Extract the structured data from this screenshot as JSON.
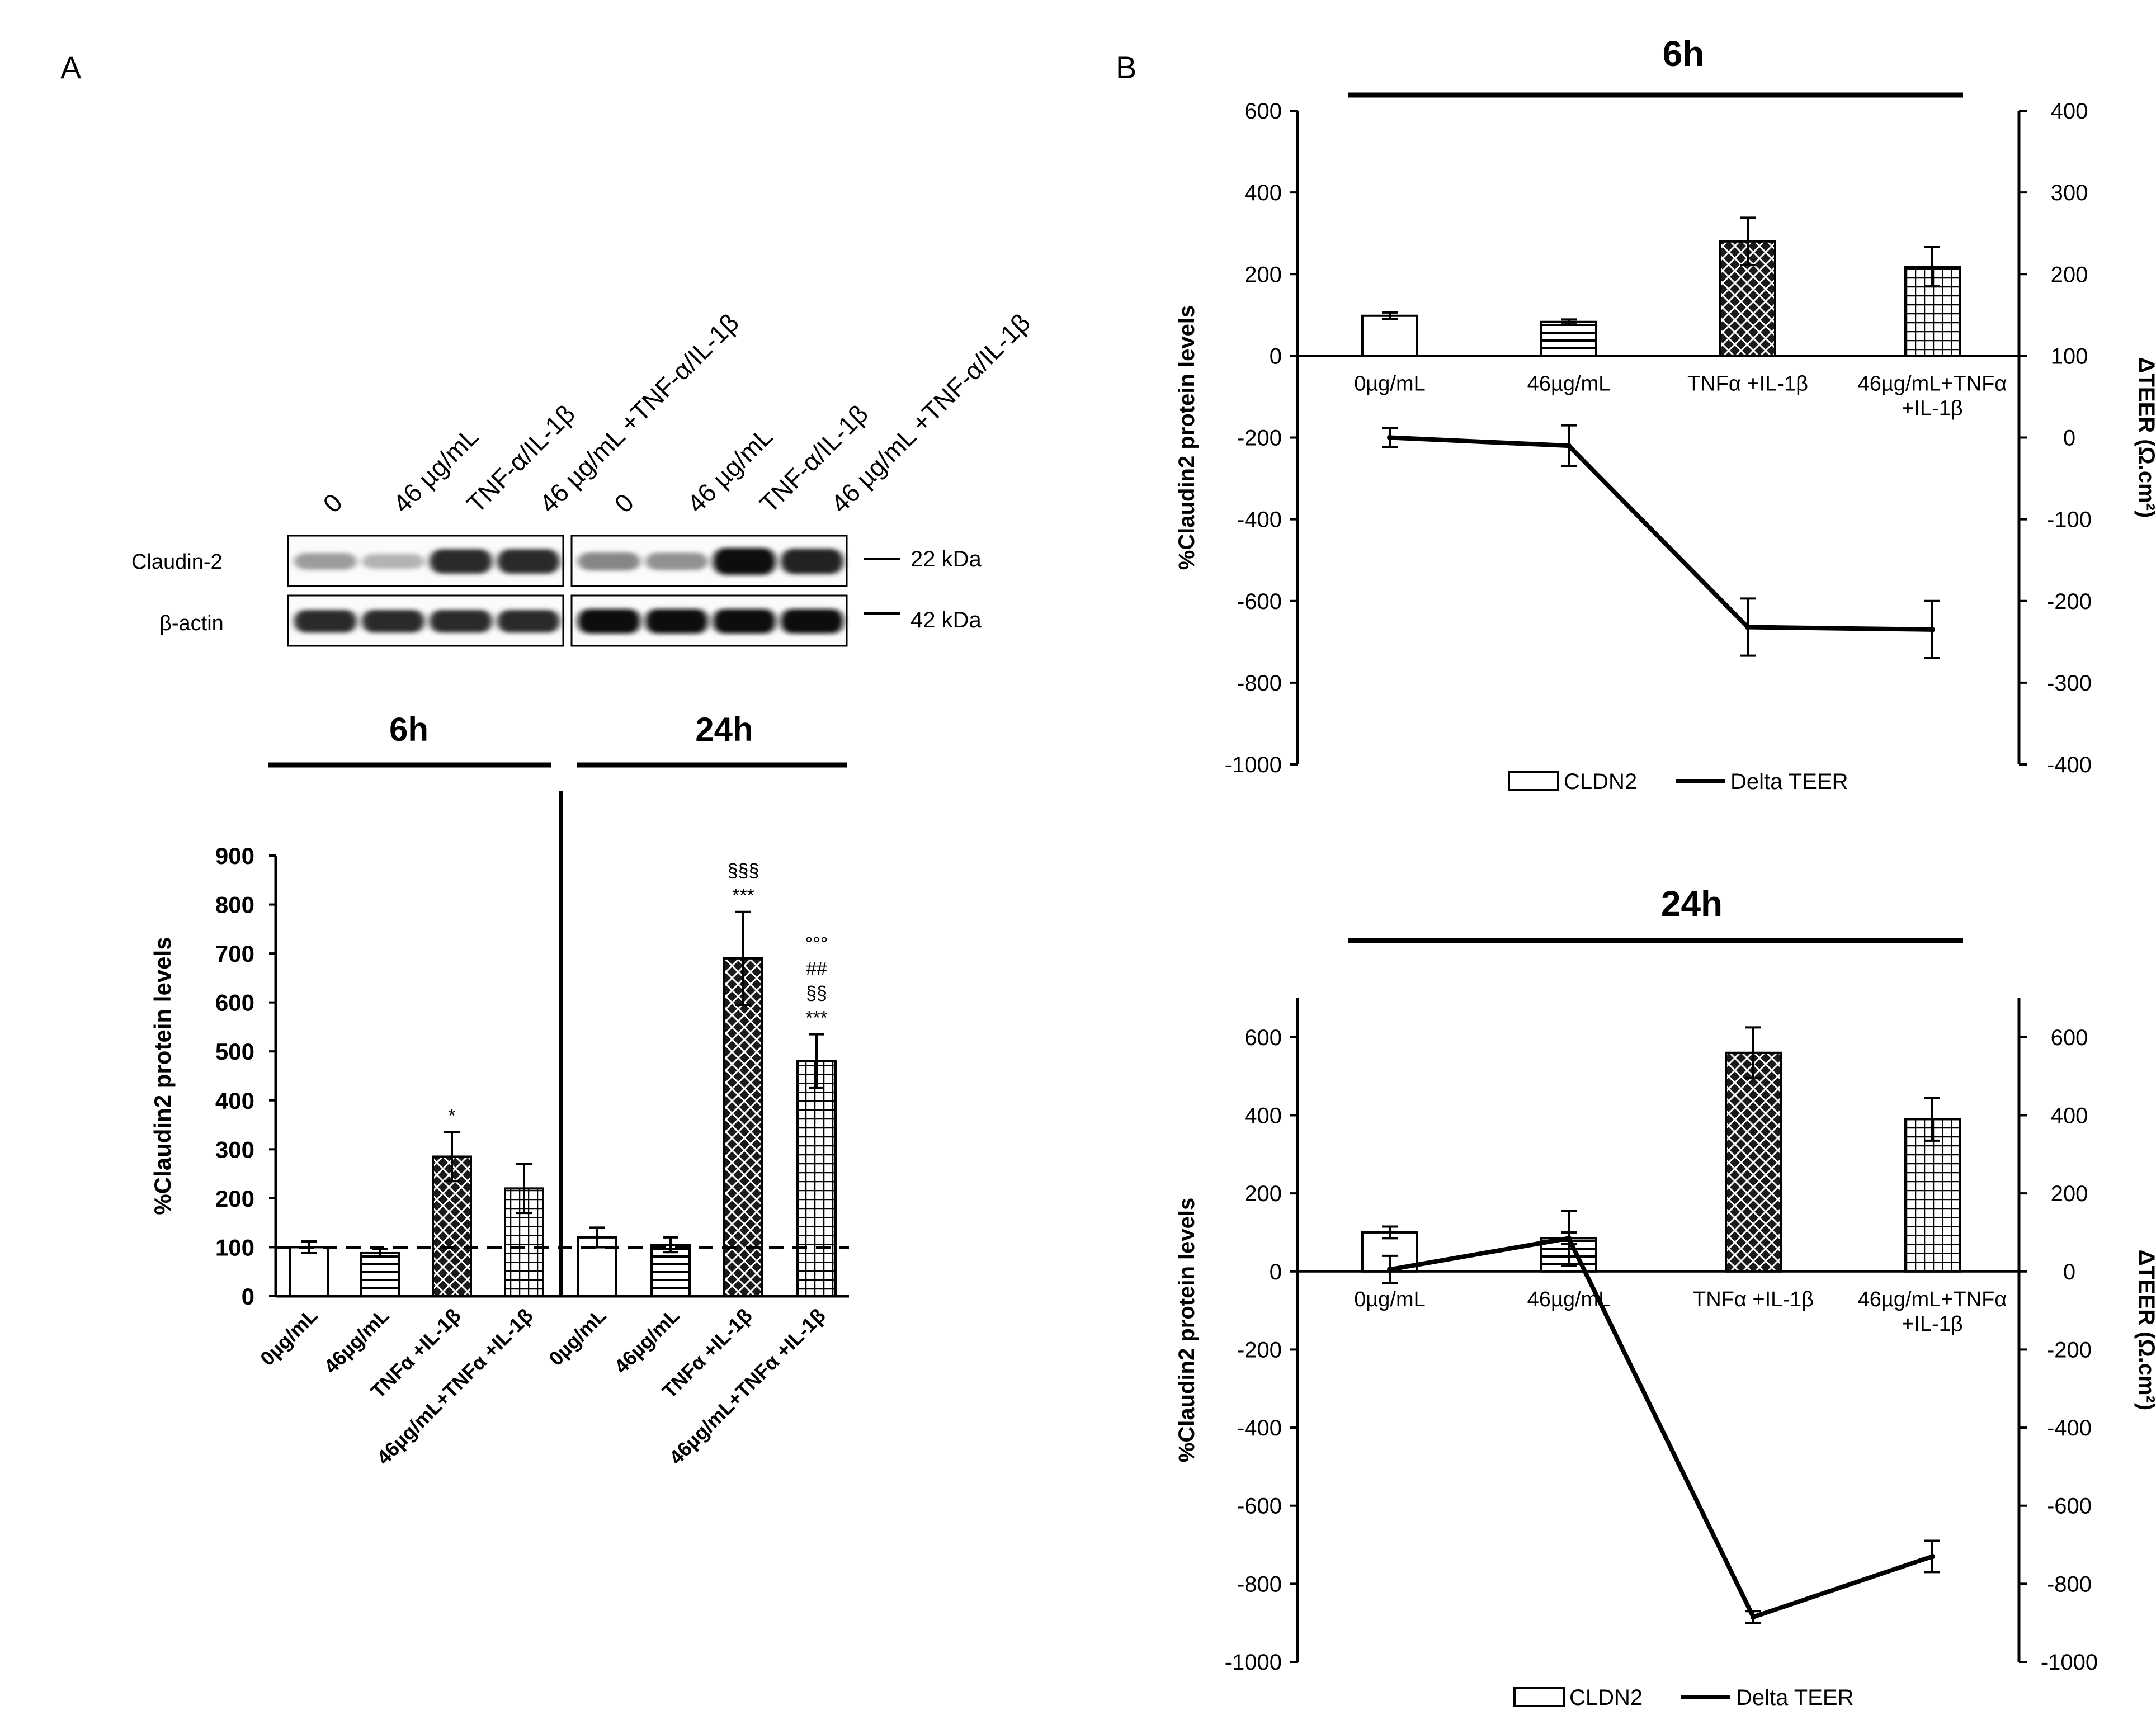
{
  "panel_a": {
    "letter": "A",
    "blot": {
      "lanes": [
        "0",
        "46 µg/mL",
        "TNF-α/IL-1β",
        "46 µg/mL +TNF-α/IL-1β",
        "0",
        "46 µg/mL",
        "TNF-α/IL-1β",
        "46 µg/mL +TNF-α/IL-1β"
      ],
      "rows": [
        "Claudin-2",
        "β-actin"
      ],
      "markers": [
        "22 kDa",
        "42 kDa"
      ],
      "intensity": {
        "claudin": [
          0.35,
          0.25,
          0.85,
          0.85,
          0.45,
          0.4,
          1.0,
          0.9
        ],
        "actin": [
          0.85,
          0.85,
          0.85,
          0.85,
          1.0,
          1.0,
          1.0,
          1.0
        ]
      }
    }
  },
  "panel_b": {
    "letter": "B"
  },
  "chart_data": [
    {
      "id": "A-bar",
      "type": "bar",
      "groups": [
        "6h",
        "24h"
      ],
      "categories": [
        "0µg/mL",
        "46µg/mL",
        "TNFα +IL-1β",
        "46µg/mL+TNFα +IL-1β",
        "0µg/mL",
        "46µg/mL",
        "TNFα +IL-1β",
        "46µg/mL+TNFα +IL-1β"
      ],
      "values": [
        100,
        88,
        285,
        220,
        120,
        105,
        690,
        480
      ],
      "errors": [
        12,
        8,
        50,
        50,
        20,
        15,
        95,
        55
      ],
      "patterns": [
        "empty",
        "hlines",
        "cross",
        "grid",
        "empty",
        "hlines",
        "cross",
        "grid"
      ],
      "annotations": [
        [],
        [],
        [
          "*"
        ],
        [],
        [],
        [],
        [
          "§§§",
          "***"
        ],
        [
          "°°°",
          "##",
          "§§",
          "***"
        ]
      ],
      "reference_line": 100,
      "ylabel": "%Claudin2 protein levels",
      "ylim": [
        0,
        900
      ],
      "yticks": [
        0,
        100,
        200,
        300,
        400,
        500,
        600,
        700,
        800,
        900
      ]
    },
    {
      "id": "B-6h",
      "type": "bar+line",
      "title": "6h",
      "categories": [
        "0µg/mL",
        "46µg/mL",
        "TNFα +IL-1β",
        "46µg/mL+TNFα +IL-1β"
      ],
      "bars": {
        "name": "CLDN2",
        "values": [
          98,
          83,
          280,
          218
        ],
        "errors": [
          8,
          6,
          58,
          48
        ],
        "patterns": [
          "empty",
          "hlines",
          "cross",
          "grid"
        ]
      },
      "line": {
        "name": "Delta TEER",
        "values": [
          0,
          -10,
          -232,
          -235
        ],
        "errors": [
          12,
          25,
          35,
          35
        ]
      },
      "ylabel": "%Claudin2 protein levels",
      "y2label": "ΔTEER (Ω.cm²)",
      "ylim": [
        -1000,
        600
      ],
      "yticks": [
        -1000,
        -800,
        -600,
        -400,
        -200,
        0,
        200,
        400,
        600
      ],
      "y2lim": [
        -400,
        400
      ],
      "y2ticks": [
        -400,
        -300,
        -200,
        -100,
        0,
        100,
        200,
        300,
        400
      ],
      "legend": [
        "CLDN2",
        "Delta TEER"
      ]
    },
    {
      "id": "B-24h",
      "type": "bar+line",
      "title": "24h",
      "categories": [
        "0µg/mL",
        "46µg/mL",
        "TNFα +IL-1β",
        "46µg/mL+TNFα +IL-1β"
      ],
      "bars": {
        "name": "CLDN2",
        "values": [
          100,
          85,
          560,
          390
        ],
        "errors": [
          15,
          15,
          65,
          55
        ],
        "patterns": [
          "empty",
          "hlines",
          "cross",
          "grid"
        ]
      },
      "line": {
        "name": "Delta TEER",
        "values": [
          5,
          85,
          -885,
          -730
        ],
        "errors": [
          35,
          70,
          15,
          40
        ]
      },
      "ylabel": "%Claudin2 protein levels",
      "y2label": "ΔTEER (Ω.cm²)",
      "ylim": [
        -1000,
        700
      ],
      "yticks": [
        -1000,
        -800,
        -600,
        -400,
        -200,
        0,
        200,
        400,
        600
      ],
      "y2lim": [
        -1000,
        700
      ],
      "y2ticks": [
        -1000,
        -800,
        -600,
        -400,
        -200,
        0,
        200,
        400,
        600
      ],
      "legend": [
        "CLDN2",
        "Delta TEER"
      ]
    }
  ]
}
